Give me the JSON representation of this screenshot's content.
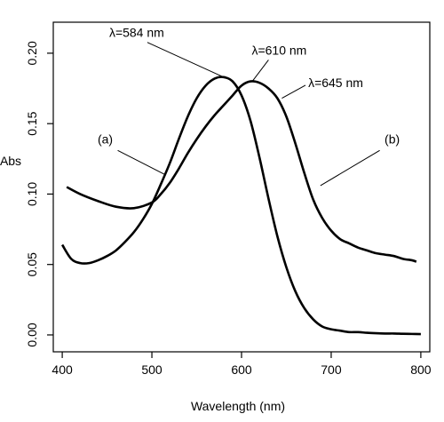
{
  "chart_data": {
    "type": "line",
    "title": "",
    "xlabel": "Wavelength (nm)",
    "ylabel": "Abs",
    "xlim": [
      390,
      810
    ],
    "ylim": [
      -0.012,
      0.222
    ],
    "xticks": [
      400,
      500,
      600,
      700,
      800
    ],
    "yticks": [
      0.0,
      0.05,
      0.1,
      0.15,
      0.2
    ],
    "xtick_labels": [
      "400",
      "500",
      "600",
      "700",
      "800"
    ],
    "ytick_labels": [
      "0.00",
      "0.05",
      "0.10",
      "0.15",
      "0.20"
    ],
    "grid": false,
    "series": [
      {
        "name": "(a)",
        "x": [
          400,
          410,
          420,
          430,
          440,
          450,
          460,
          470,
          480,
          490,
          500,
          510,
          520,
          530,
          540,
          550,
          560,
          570,
          580,
          590,
          600,
          610,
          620,
          630,
          640,
          650,
          660,
          670,
          680,
          690,
          700,
          710,
          720,
          730,
          740,
          750,
          760,
          770,
          780,
          790,
          800
        ],
        "values": [
          0.064,
          0.054,
          0.051,
          0.051,
          0.053,
          0.056,
          0.06,
          0.066,
          0.073,
          0.082,
          0.093,
          0.107,
          0.122,
          0.139,
          0.155,
          0.168,
          0.177,
          0.182,
          0.183,
          0.18,
          0.17,
          0.152,
          0.126,
          0.097,
          0.07,
          0.048,
          0.031,
          0.019,
          0.011,
          0.006,
          0.004,
          0.003,
          0.002,
          0.002,
          0.0015,
          0.0012,
          0.001,
          0.001,
          0.0008,
          0.0007,
          0.0006
        ]
      },
      {
        "name": "(b)",
        "x": [
          405,
          420,
          440,
          460,
          480,
          500,
          510,
          520,
          530,
          540,
          550,
          560,
          570,
          580,
          590,
          600,
          610,
          620,
          630,
          640,
          650,
          660,
          670,
          680,
          690,
          700,
          710,
          720,
          730,
          740,
          750,
          760,
          770,
          780,
          790,
          795
        ],
        "values": [
          0.105,
          0.1,
          0.095,
          0.091,
          0.09,
          0.094,
          0.1,
          0.108,
          0.118,
          0.129,
          0.139,
          0.148,
          0.156,
          0.163,
          0.17,
          0.177,
          0.18,
          0.179,
          0.175,
          0.168,
          0.155,
          0.136,
          0.115,
          0.096,
          0.083,
          0.074,
          0.068,
          0.065,
          0.062,
          0.06,
          0.058,
          0.057,
          0.056,
          0.054,
          0.053,
          0.052
        ]
      }
    ],
    "annotations": [
      {
        "text": "λ=584 nm",
        "x": 483,
        "y": 0.2115,
        "line_to": [
          580,
          0.183
        ]
      },
      {
        "text": "λ=610 nm",
        "x": 642,
        "y": 0.199,
        "line_to": [
          612,
          0.18
        ]
      },
      {
        "text": "λ=645 nm",
        "x": 705,
        "y": 0.176,
        "line_to": [
          645,
          0.168
        ]
      },
      {
        "text": "(a)",
        "x": 448,
        "y": 0.136,
        "line_to": [
          514,
          0.114
        ]
      },
      {
        "text": "(b)",
        "x": 768,
        "y": 0.136,
        "line_to": [
          688,
          0.106
        ]
      }
    ]
  }
}
